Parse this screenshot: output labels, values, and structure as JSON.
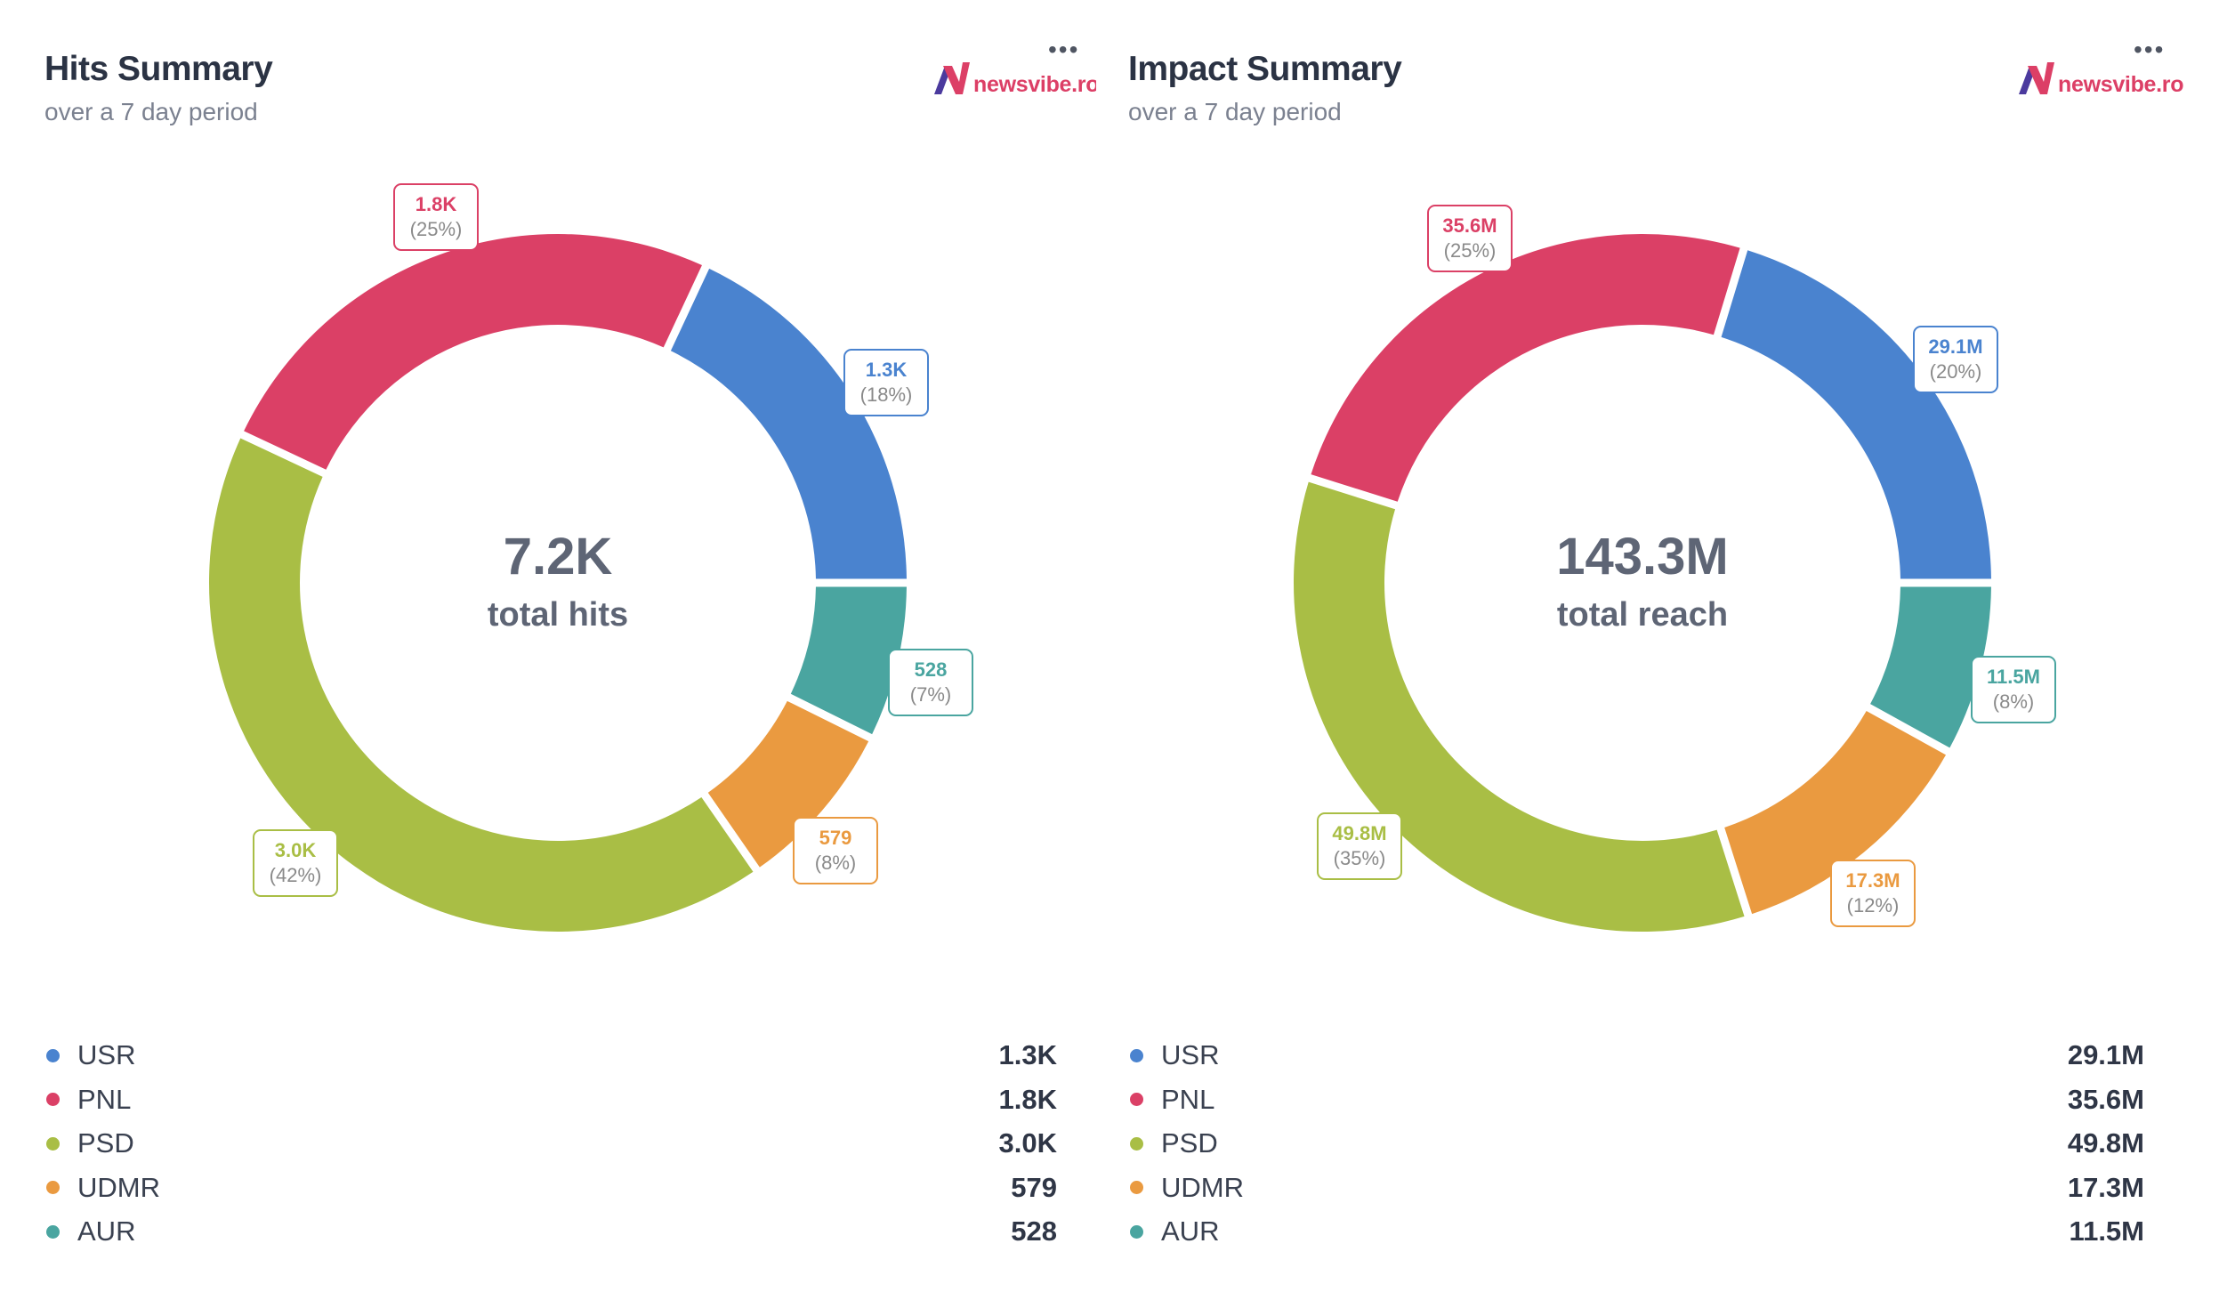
{
  "colors": {
    "USR": "#4a83cf",
    "PNL": "#db4066",
    "PSD": "#a9be45",
    "UDMR": "#ea9a40",
    "AUR": "#4aa5a0"
  },
  "brand": {
    "logo_text": "newsvibe.ro",
    "logo_color": "#dc3f66",
    "logo_accent": "#4b3a9e"
  },
  "menu_icon": "more-horizontal-icon",
  "menu_glyph": "•••",
  "chart_data": [
    {
      "type": "pie",
      "title": "Hits Summary",
      "subtitle": "over a 7 day period",
      "center_value": "7.2K",
      "center_label": "total hits",
      "categories": [
        "USR",
        "PNL",
        "PSD",
        "UDMR",
        "AUR"
      ],
      "values": [
        1300,
        1800,
        3000,
        579,
        528
      ],
      "value_labels": [
        "1.3K",
        "1.8K",
        "3.0K",
        "579",
        "528"
      ],
      "percent_labels": [
        "(18%)",
        "(25%)",
        "(42%)",
        "(8%)",
        "(7%)"
      ],
      "percents": [
        18,
        25,
        42,
        8,
        7
      ],
      "legend": "bottom",
      "donut": true
    },
    {
      "type": "pie",
      "title": "Impact Summary",
      "subtitle": "over a 7 day period",
      "center_value": "143.3M",
      "center_label": "total reach",
      "categories": [
        "USR",
        "PNL",
        "PSD",
        "UDMR",
        "AUR"
      ],
      "values": [
        29.1,
        35.6,
        49.8,
        17.3,
        11.5
      ],
      "value_labels": [
        "29.1M",
        "35.6M",
        "49.8M",
        "17.3M",
        "11.5M"
      ],
      "percent_labels": [
        "(20%)",
        "(25%)",
        "(35%)",
        "(12%)",
        "(8%)"
      ],
      "percents": [
        20,
        25,
        35,
        12,
        8
      ],
      "unit": "M",
      "legend": "bottom",
      "donut": true
    }
  ]
}
